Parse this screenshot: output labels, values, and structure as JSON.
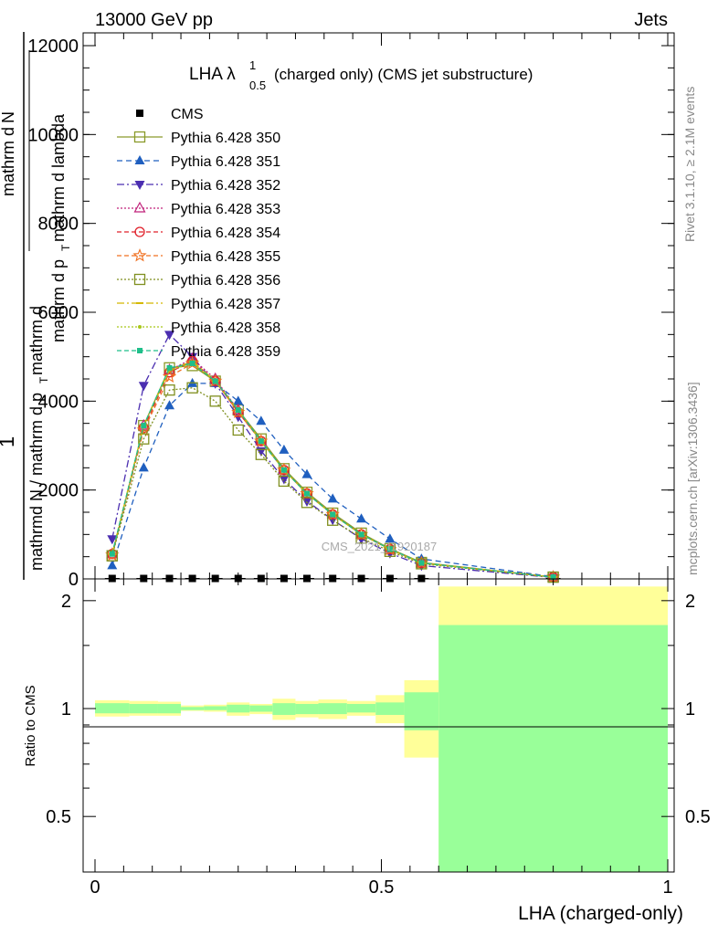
{
  "header": {
    "left": "13000 GeV pp",
    "right": "Jets"
  },
  "side_text": {
    "rivet": "Rivet 3.1.10, ≥ 2.1M events",
    "mcplots": "mcplots.cern.ch [arXiv:1306.3436]"
  },
  "watermark": "CMS_2021_I1920187",
  "chart_data": [
    {
      "type": "line",
      "title_main": "LHA λ",
      "title_sup": "1",
      "title_sub": "0.5",
      "title_rest": "(charged only) (CMS jet substructure)",
      "ylabel": {
        "num_1": "1",
        "num_2": "mathrm d",
        "num_3": "N",
        "den": "mathrm d p",
        "den_sub": "T",
        "den_2": " mathrm d lambda",
        "outer": "mathrmd N / mathrm d p",
        "outer_sub": "T",
        "outer_2": " mathrm d"
      },
      "xlim": [
        0,
        1
      ],
      "ylim": [
        0,
        12000
      ],
      "y_ticks": [
        0,
        2000,
        4000,
        6000,
        8000,
        10000,
        12000
      ],
      "y_tick_labels": [
        "0",
        "2000",
        "4000",
        "6000",
        "8000",
        "10000",
        "12000"
      ],
      "x": [
        0.03,
        0.085,
        0.13,
        0.17,
        0.21,
        0.25,
        0.29,
        0.33,
        0.37,
        0.415,
        0.465,
        0.515,
        0.57,
        0.8
      ],
      "series": [
        {
          "name": "CMS",
          "color": "#000000",
          "dash": "",
          "marker": "square-filled",
          "values": [
            10,
            10,
            10,
            10,
            10,
            10,
            10,
            10,
            10,
            10,
            10,
            10,
            10,
            10
          ]
        },
        {
          "name": "Pythia 6.428 350",
          "color": "#8a9a2a",
          "dash": "",
          "marker": "square-open",
          "values": [
            520,
            3450,
            4750,
            4800,
            4450,
            3800,
            3150,
            2480,
            1950,
            1480,
            1030,
            680,
            370,
            40
          ]
        },
        {
          "name": "Pythia 6.428 351",
          "color": "#1f5fbf",
          "dash": "6,4",
          "marker": "triangle-up-filled",
          "values": [
            300,
            2500,
            3900,
            4400,
            4400,
            4000,
            3550,
            2900,
            2350,
            1800,
            1350,
            900,
            450,
            50
          ]
        },
        {
          "name": "Pythia 6.428 352",
          "color": "#4b2eb0",
          "dash": "8,3,2,3",
          "marker": "triangle-down-filled",
          "values": [
            900,
            4350,
            5500,
            5000,
            4400,
            3650,
            2880,
            2250,
            1750,
            1330,
            900,
            580,
            300,
            30
          ]
        },
        {
          "name": "Pythia 6.428 353",
          "color": "#c0227a",
          "dash": "2,2",
          "marker": "triangle-up-open",
          "values": [
            560,
            3450,
            4700,
            4950,
            4500,
            3800,
            3100,
            2450,
            1920,
            1450,
            1000,
            670,
            360,
            40
          ]
        },
        {
          "name": "Pythia 6.428 354",
          "color": "#e0202a",
          "dash": "5,3",
          "marker": "circle-open",
          "values": [
            560,
            3400,
            4650,
            4900,
            4450,
            3750,
            3100,
            2450,
            1920,
            1450,
            1000,
            670,
            360,
            40
          ]
        },
        {
          "name": "Pythia 6.428 355",
          "color": "#f07020",
          "dash": "5,3",
          "marker": "star-open",
          "values": [
            540,
            3350,
            4550,
            4850,
            4450,
            3750,
            3100,
            2450,
            1920,
            1450,
            1000,
            660,
            360,
            40
          ]
        },
        {
          "name": "Pythia 6.428 356",
          "color": "#7f8f1f",
          "dash": "2,2",
          "marker": "square-open",
          "values": [
            520,
            3150,
            4250,
            4300,
            4000,
            3350,
            2800,
            2200,
            1720,
            1320,
            920,
            620,
            340,
            40
          ]
        },
        {
          "name": "Pythia 6.428 357",
          "color": "#d4b800",
          "dash": "8,3,2,3",
          "marker": "dash",
          "values": [
            560,
            3450,
            4700,
            4900,
            4450,
            3800,
            3100,
            2450,
            1920,
            1450,
            1000,
            670,
            360,
            40
          ]
        },
        {
          "name": "Pythia 6.428 358",
          "color": "#a9c81a",
          "dash": "2,2",
          "marker": "dot",
          "values": [
            560,
            3450,
            4700,
            4850,
            4450,
            3800,
            3100,
            2450,
            1920,
            1450,
            1000,
            670,
            360,
            40
          ]
        },
        {
          "name": "Pythia 6.428 359",
          "color": "#1fbf8a",
          "dash": "5,3",
          "marker": "square-filled-small",
          "values": [
            560,
            3450,
            4750,
            4850,
            4450,
            3800,
            3100,
            2450,
            1920,
            1450,
            1000,
            670,
            360,
            40
          ]
        }
      ]
    },
    {
      "type": "area",
      "ylabel": "Ratio to CMS",
      "xlabel": "LHA (charged-only)",
      "xlim": [
        0,
        1
      ],
      "ylim": [
        0.35,
        2.3
      ],
      "x_ticks": [
        0,
        0.5,
        1
      ],
      "x_tick_labels": [
        "0",
        "0.5",
        "1"
      ],
      "y_ticks": [
        0.5,
        1,
        2
      ],
      "y_tick_labels": [
        "0.5",
        "1",
        "2"
      ],
      "band_colors": {
        "outer": "#ffff99",
        "inner": "#99ff99"
      },
      "bins": [
        {
          "lo": 0.0,
          "hi": 0.06,
          "outer": [
            0.95,
            1.055
          ],
          "inner": [
            0.97,
            1.035
          ]
        },
        {
          "lo": 0.06,
          "hi": 0.11,
          "outer": [
            0.955,
            1.05
          ],
          "inner": [
            0.97,
            1.03
          ]
        },
        {
          "lo": 0.11,
          "hi": 0.15,
          "outer": [
            0.955,
            1.045
          ],
          "inner": [
            0.97,
            1.03
          ]
        },
        {
          "lo": 0.15,
          "hi": 0.19,
          "outer": [
            0.985,
            1.02
          ],
          "inner": [
            0.99,
            1.01
          ]
        },
        {
          "lo": 0.19,
          "hi": 0.23,
          "outer": [
            0.98,
            1.025
          ],
          "inner": [
            0.99,
            1.015
          ]
        },
        {
          "lo": 0.23,
          "hi": 0.27,
          "outer": [
            0.955,
            1.04
          ],
          "inner": [
            0.975,
            1.025
          ]
        },
        {
          "lo": 0.27,
          "hi": 0.31,
          "outer": [
            0.965,
            1.03
          ],
          "inner": [
            0.98,
            1.02
          ]
        },
        {
          "lo": 0.31,
          "hi": 0.35,
          "outer": [
            0.93,
            1.065
          ],
          "inner": [
            0.96,
            1.035
          ]
        },
        {
          "lo": 0.35,
          "hi": 0.39,
          "outer": [
            0.945,
            1.05
          ],
          "inner": [
            0.965,
            1.03
          ]
        },
        {
          "lo": 0.39,
          "hi": 0.44,
          "outer": [
            0.935,
            1.06
          ],
          "inner": [
            0.965,
            1.035
          ]
        },
        {
          "lo": 0.44,
          "hi": 0.49,
          "outer": [
            0.955,
            1.05
          ],
          "inner": [
            0.975,
            1.03
          ]
        },
        {
          "lo": 0.49,
          "hi": 0.54,
          "outer": [
            0.91,
            1.09
          ],
          "inner": [
            0.96,
            1.04
          ]
        },
        {
          "lo": 0.54,
          "hi": 0.6,
          "outer": [
            0.73,
            1.2
          ],
          "inner": [
            0.87,
            1.11
          ]
        },
        {
          "lo": 0.6,
          "hi": 1.0,
          "outer": [
            0.35,
            2.19
          ],
          "inner": [
            0.35,
            1.71
          ]
        }
      ]
    }
  ]
}
